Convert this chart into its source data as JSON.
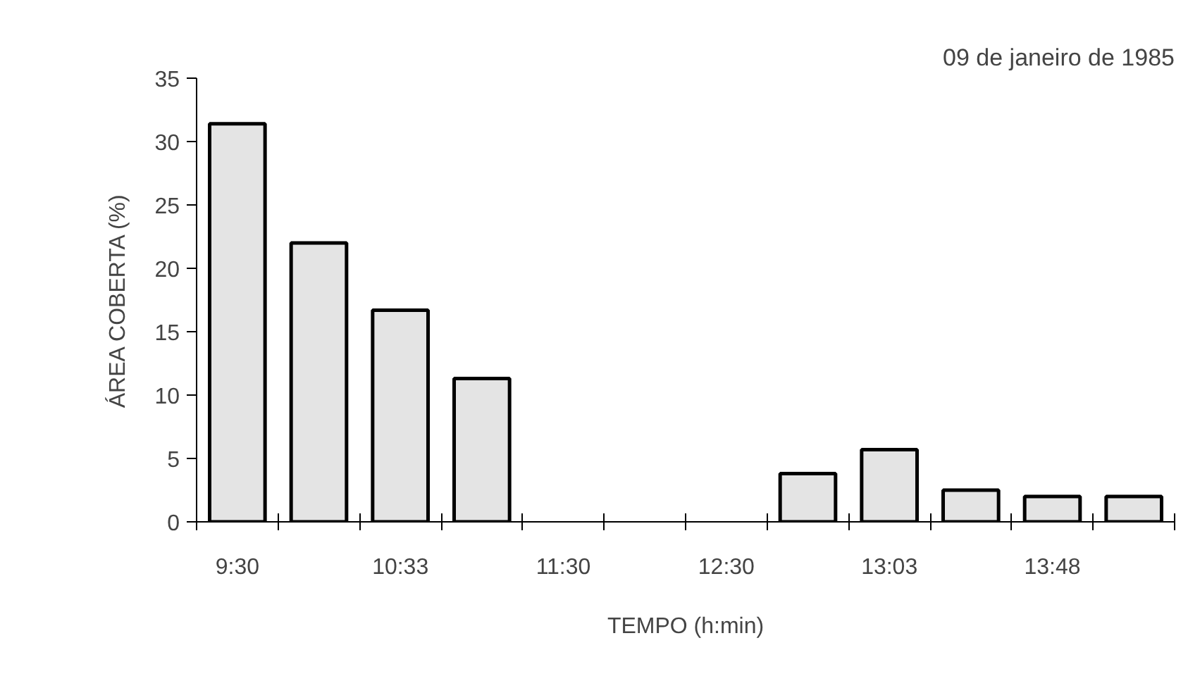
{
  "chart_data": {
    "type": "bar",
    "title": "09 de janeiro de 1985",
    "xlabel": "TEMPO (h:min)",
    "ylabel": "ÁREA COBERTA (%)",
    "categories": [
      "9:30",
      null,
      "10:33",
      null,
      "11:30",
      null,
      "12:30",
      null,
      "13:03",
      null,
      "13:48",
      null
    ],
    "values": [
      31.4,
      22.0,
      16.7,
      11.3,
      null,
      null,
      null,
      3.8,
      5.7,
      2.5,
      2.0,
      2.0
    ],
    "color": "#e4e4e4",
    "ylim": [
      0,
      35
    ],
    "yticks": [
      0,
      5,
      10,
      15,
      20,
      25,
      30,
      35
    ],
    "grid": false
  }
}
